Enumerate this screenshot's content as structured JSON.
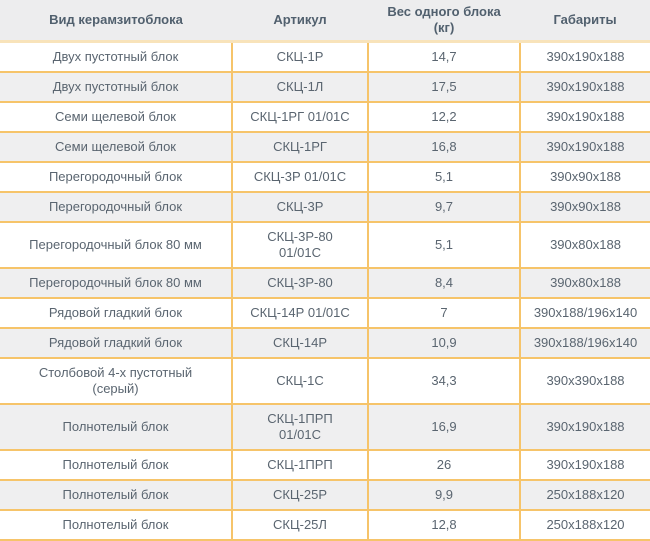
{
  "table": {
    "columns": [
      "Вид керамзитоблока",
      "Артикул",
      "Вес одного блока\n(кг)",
      "Габариты"
    ],
    "rows": [
      [
        "Двух пустотный блок",
        "СКЦ-1Р",
        "14,7",
        "390х190х188"
      ],
      [
        "Двух пустотный блок",
        "СКЦ-1Л",
        "17,5",
        "390х190х188"
      ],
      [
        "Семи щелевой блок",
        "СКЦ-1РГ 01/01С",
        "12,2",
        "390х190х188"
      ],
      [
        "Семи щелевой блок",
        "СКЦ-1РГ",
        "16,8",
        "390х190х188"
      ],
      [
        "Перегородочный блок",
        "СКЦ-3Р 01/01С",
        "5,1",
        "390х90х188"
      ],
      [
        "Перегородочный блок",
        "СКЦ-3Р",
        "9,7",
        "390х90х188"
      ],
      [
        "Перегородочный блок 80 мм",
        "СКЦ-3Р-80\n01/01С",
        "5,1",
        "390х80х188"
      ],
      [
        "Перегородочный блок 80 мм",
        "СКЦ-3Р-80",
        "8,4",
        "390х80х188"
      ],
      [
        "Рядовой гладкий блок",
        "СКЦ-14Р 01/01С",
        "7",
        "390х188/196х140"
      ],
      [
        "Рядовой гладкий блок",
        "СКЦ-14Р",
        "10,9",
        "390х188/196х140"
      ],
      [
        "Столбовой 4-х пустотный\n(серый)",
        "СКЦ-1С",
        "34,3",
        "390х390х188"
      ],
      [
        "Полнотелый блок",
        "СКЦ-1ПРП\n01/01С",
        "16,9",
        "390х190х188"
      ],
      [
        "Полнотелый блок",
        "СКЦ-1ПРП",
        "26",
        "390х190х188"
      ],
      [
        "Полнотелый блок",
        "СКЦ-25Р",
        "9,9",
        "250х188х120"
      ],
      [
        "Полнотелый блок",
        "СКЦ-25Л",
        "12,8",
        "250х188х120"
      ]
    ]
  },
  "colors": {
    "border": "#f6c46a",
    "header_border": "#f8e3ba",
    "header_bg": "#ededee",
    "row_alt_bg": "#efeff0",
    "row_bg": "#ffffff",
    "header_text": "#51606e",
    "cell_text": "#5a6570"
  }
}
